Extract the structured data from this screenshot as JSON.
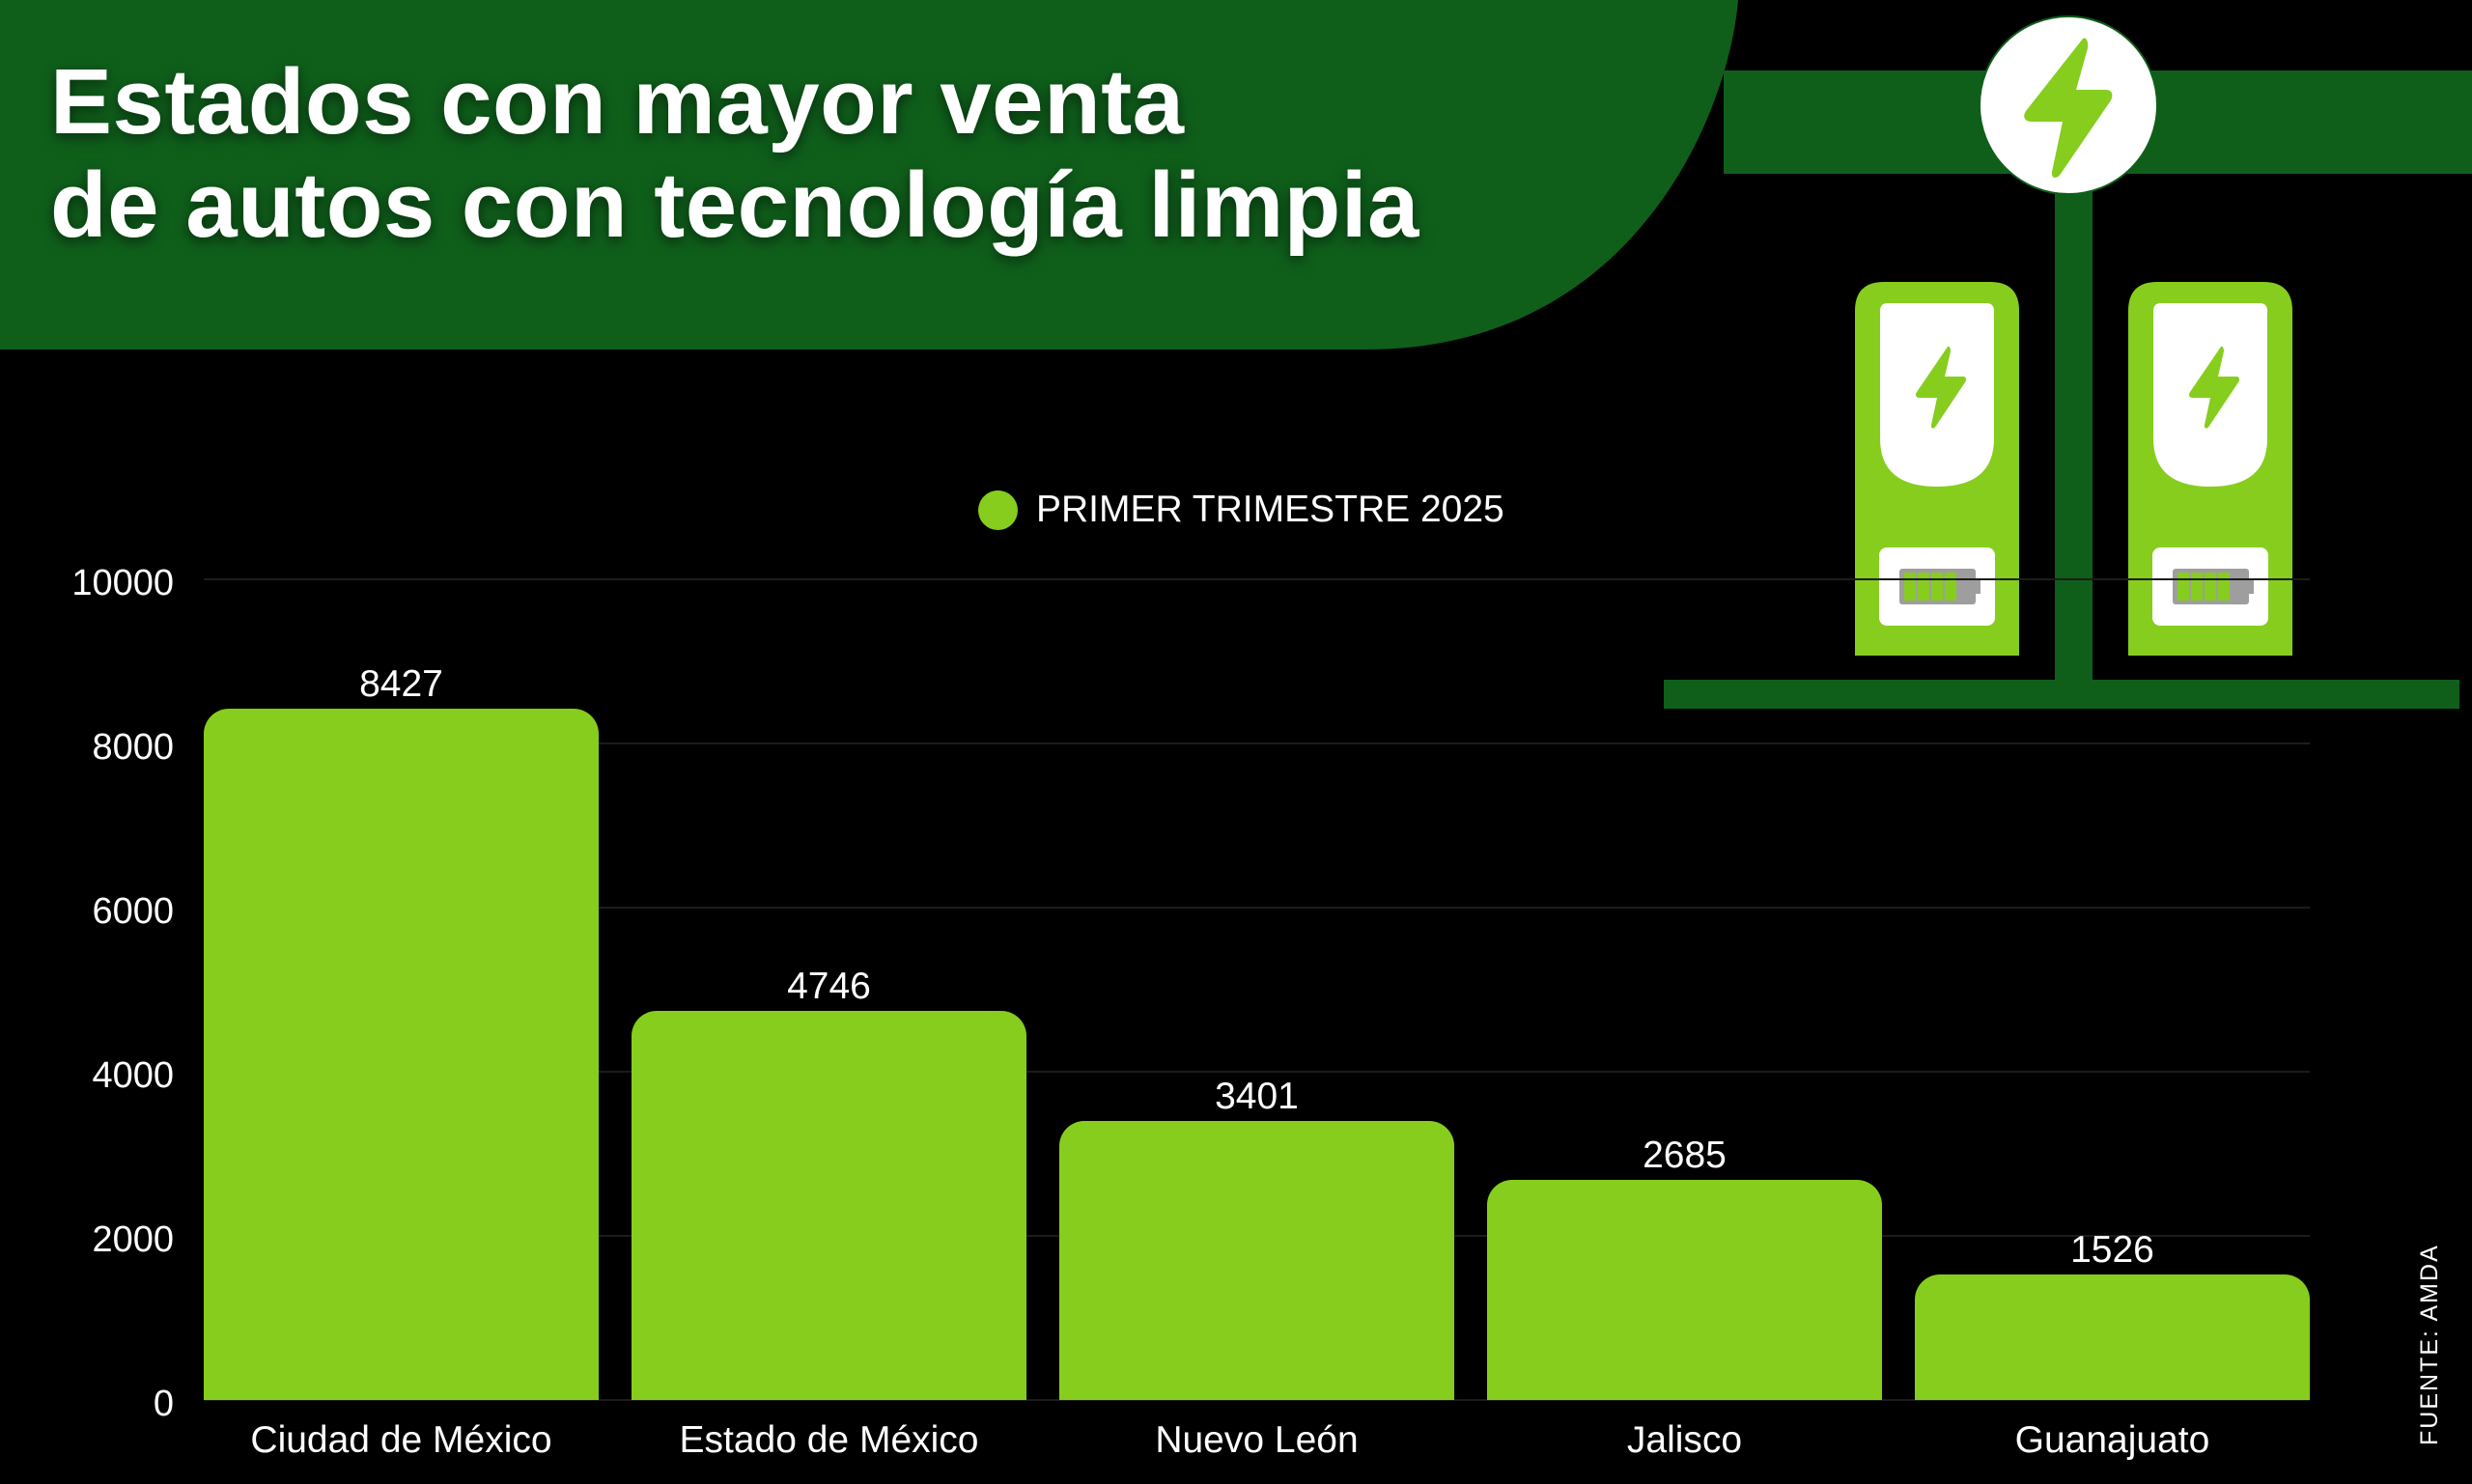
{
  "header": {
    "title_line1": "Estados con mayor venta",
    "title_line2": "de autos con tecnología limpia"
  },
  "colors": {
    "background": "#000000",
    "header_green": "#0f5f1b",
    "bar_green": "#86cd1e",
    "gridline": "#1c1c1c",
    "text": "#ffffff",
    "battery_gray": "#9e9e9e"
  },
  "illustration": {
    "icons": [
      "lightning-bolt-circle-icon",
      "charging-station-icon",
      "battery-icon"
    ]
  },
  "legend": {
    "label": "PRIMER TRIMESTRE 2025"
  },
  "y_axis": {
    "ticks": [
      "10000",
      "8000",
      "6000",
      "4000",
      "2000",
      "0"
    ]
  },
  "source": "FUENTE: AMDA",
  "chart_data": {
    "type": "bar",
    "title": "Estados con mayor venta de autos con tecnología limpia",
    "categories": [
      "Ciudad de México",
      "Estado de México",
      "Nuevo León",
      "Jalisco",
      "Guanajuato"
    ],
    "series": [
      {
        "name": "PRIMER TRIMESTRE 2025",
        "values": [
          8427,
          4746,
          3401,
          2685,
          1526
        ],
        "color": "#86cd1e"
      }
    ],
    "value_labels": [
      "8427",
      "4746",
      "3401",
      "2685",
      "1526"
    ],
    "xlabel": "",
    "ylabel": "",
    "ylim": [
      0,
      10000
    ],
    "yticks": [
      0,
      2000,
      4000,
      6000,
      8000,
      10000
    ],
    "grid": true,
    "legend_position": "top-center",
    "source": "FUENTE: AMDA"
  }
}
